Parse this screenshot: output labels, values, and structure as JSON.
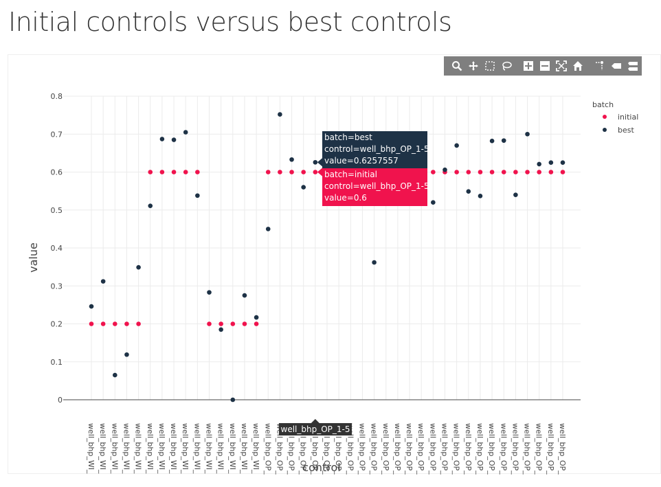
{
  "page": {
    "title": "Initial controls versus best controls"
  },
  "modebar": {
    "icons": [
      "zoom-icon",
      "pan-icon",
      "box-select-icon",
      "lasso-select-icon",
      "zoom-in-icon",
      "zoom-out-icon",
      "autoscale-icon",
      "reset-axes-icon",
      "spike-lines-icon",
      "hover-closest-icon",
      "hover-compare-icon"
    ]
  },
  "chart_data": {
    "type": "scatter",
    "title": "",
    "xlabel": "control",
    "ylabel": "value",
    "ylim": [
      0,
      0.8
    ],
    "yticks": [
      "0",
      "0.1",
      "0.2",
      "0.3",
      "0.4",
      "0.5",
      "0.6",
      "0.7",
      "0.8"
    ],
    "grid": true,
    "legend": {
      "title": "batch",
      "placement": "top-right"
    },
    "colors": {
      "initial": "#f0134d",
      "best": "#1e3246"
    },
    "x_tick_labels": [
      "well_bhp_WI_",
      "well_bhp_WI_",
      "well_bhp_WI_",
      "well_bhp_WI_",
      "well_bhp_WI_",
      "well_bhp_WI_",
      "well_bhp_WI_",
      "well_bhp_WI_",
      "well_bhp_WI_",
      "well_bhp_WI_",
      "well_bhp_WI_",
      "well_bhp_WI_",
      "well_bhp_WI_",
      "well_bhp_WI_",
      "well_bhp_WI_",
      "well_bhp_OP_",
      "well_bhp_OP_",
      "well_bhp_OP_",
      "well_bhp_OP_",
      "well_bhp_OP_",
      "well_bhp_OP_",
      "well_bhp_OP_",
      "well_bhp_OP_",
      "well_bhp_OP_",
      "well_bhp_OP_",
      "well_bhp_OP_",
      "well_bhp_OP_",
      "well_bhp_OP_",
      "well_bhp_OP_",
      "well_bhp_OP_",
      "well_bhp_OP_",
      "well_bhp_OP_",
      "well_bhp_OP_",
      "well_bhp_OP_",
      "well_bhp_OP_",
      "well_bhp_OP_",
      "well_bhp_OP_",
      "well_bhp_OP_",
      "well_bhp_OP_",
      "well_bhp_OP_",
      "well_bhp_OP_"
    ],
    "series": [
      {
        "name": "initial",
        "values": [
          0.2,
          0.2,
          0.2,
          0.2,
          0.2,
          0.6,
          0.6,
          0.6,
          0.6,
          0.6,
          0.2,
          0.2,
          0.2,
          0.2,
          0.2,
          0.6,
          0.6,
          0.6,
          0.6,
          0.6,
          0.6,
          0.6,
          0.6,
          0.6,
          0.6,
          0.6,
          0.6,
          0.6,
          0.6,
          0.6,
          0.6,
          0.6,
          0.6,
          0.6,
          0.6,
          0.6,
          0.6,
          0.6,
          0.6,
          0.6,
          0.6
        ]
      },
      {
        "name": "best",
        "values": [
          0.246,
          0.312,
          0.065,
          0.119,
          0.349,
          0.511,
          0.687,
          0.685,
          0.705,
          0.538,
          0.283,
          0.185,
          0.0,
          0.275,
          0.217,
          0.45,
          0.752,
          0.633,
          0.56,
          0.6257557,
          0.6,
          0.6,
          0.6,
          0.6,
          0.362,
          0.6,
          0.6,
          0.6,
          0.6,
          0.52,
          0.606,
          0.67,
          0.549,
          0.537,
          0.682,
          0.683,
          0.54,
          0.7,
          0.621,
          0.625,
          0.625
        ]
      }
    ],
    "hover": {
      "best": [
        "batch=best",
        "control=well_bhp_OP_1-5",
        "value=0.6257557"
      ],
      "initial": [
        "batch=initial",
        "control=well_bhp_OP_1-5",
        "value=0.6"
      ],
      "x_label": "well_bhp_OP_1-5"
    }
  }
}
